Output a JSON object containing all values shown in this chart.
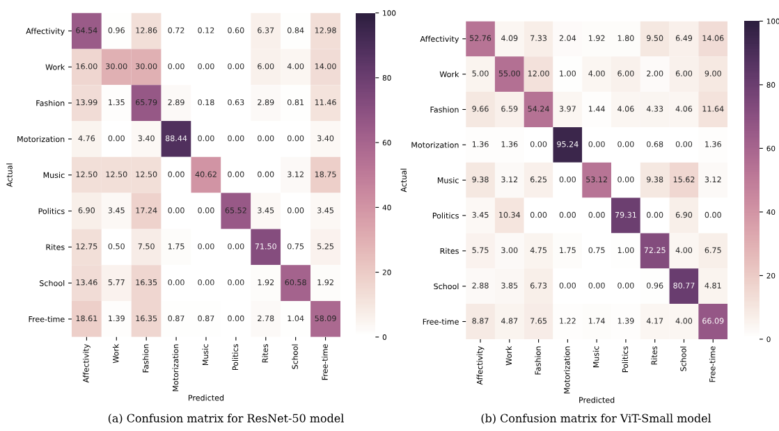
{
  "chart_data": [
    {
      "type": "heatmap",
      "xlabel": "Predicted",
      "ylabel": "Actual",
      "annotations": [
        "(a) Confusion matrix for ResNet-50 model"
      ],
      "categories": [
        "Affectivity",
        "Work",
        "Fashion",
        "Motorization",
        "Music",
        "Politics",
        "Rites",
        "School",
        "Free-time"
      ],
      "y_categories": [
        "Affectivity",
        "Work",
        "Fashion",
        "Motorization",
        "Music",
        "Politics",
        "Rites",
        "School",
        "Free-time"
      ],
      "cells": [
        [
          64.54,
          0.96,
          12.86,
          0.72,
          0.12,
          0.6,
          6.37,
          0.84,
          12.98
        ],
        [
          16.0,
          30.0,
          30.0,
          0.0,
          0.0,
          0.0,
          6.0,
          4.0,
          14.0
        ],
        [
          13.99,
          1.35,
          65.79,
          2.89,
          0.18,
          0.63,
          2.89,
          0.81,
          11.46
        ],
        [
          4.76,
          0.0,
          3.4,
          88.44,
          0.0,
          0.0,
          0.0,
          0.0,
          3.4
        ],
        [
          12.5,
          12.5,
          12.5,
          0.0,
          40.62,
          0.0,
          0.0,
          3.12,
          18.75
        ],
        [
          6.9,
          3.45,
          17.24,
          0.0,
          0.0,
          65.52,
          3.45,
          0.0,
          3.45
        ],
        [
          12.75,
          0.5,
          7.5,
          1.75,
          0.0,
          0.0,
          71.5,
          0.75,
          5.25
        ],
        [
          13.46,
          5.77,
          16.35,
          0.0,
          0.0,
          0.0,
          1.92,
          60.58,
          1.92
        ],
        [
          18.61,
          1.39,
          16.35,
          0.87,
          0.87,
          0.0,
          2.78,
          1.04,
          58.09
        ]
      ],
      "cell_labels": [
        [
          "64.54",
          "0.96",
          "12.86",
          "0.72",
          "0.12",
          "0.60",
          "6.37",
          "0.84",
          "12.98"
        ],
        [
          "16.00",
          "30.00",
          "30.00",
          "0.00",
          "0.00",
          "0.00",
          "6.00",
          "4.00",
          "14.00"
        ],
        [
          "13.99",
          "1.35",
          "65.79",
          "2.89",
          "0.18",
          "0.63",
          "2.89",
          "0.81",
          "11.46"
        ],
        [
          "4.76",
          "0.00",
          "3.40",
          "88.44",
          "0.00",
          "0.00",
          "0.00",
          "0.00",
          "3.40"
        ],
        [
          "12.50",
          "12.50",
          "12.50",
          "0.00",
          "40.62",
          "0.00",
          "0.00",
          "3.12",
          "18.75"
        ],
        [
          "6.90",
          "3.45",
          "17.24",
          "0.00",
          "0.00",
          "65.52",
          "3.45",
          "0.00",
          "3.45"
        ],
        [
          "12.75",
          "0.50",
          "7.50",
          "1.75",
          "0.00",
          "0.00",
          "71.50",
          "0.75",
          "5.25"
        ],
        [
          "13.46",
          "5.77",
          "16.35",
          "0.00",
          "0.00",
          "0.00",
          "1.92",
          "60.58",
          "1.92"
        ],
        [
          "18.61",
          "1.39",
          "16.35",
          "0.87",
          "0.87",
          "0.00",
          "2.78",
          "1.04",
          "58.09"
        ]
      ],
      "clim": [
        0,
        100
      ],
      "cticks": [
        0,
        20,
        40,
        60,
        80,
        100
      ]
    },
    {
      "type": "heatmap",
      "xlabel": "Predicted",
      "ylabel": "Actual",
      "annotations": [
        "(b) Confusion matrix for ViT-Small model"
      ],
      "categories": [
        "Affectivity",
        "Work",
        "Fashion",
        "Motorization",
        "Music",
        "Politics",
        "Rites",
        "School",
        "Free-time"
      ],
      "y_categories": [
        "Affectivity",
        "Work",
        "Fashion",
        "Motorization",
        "Music",
        "Politics",
        "Rites",
        "School",
        "Free-time"
      ],
      "cells": [
        [
          52.76,
          4.09,
          7.33,
          2.04,
          1.92,
          1.8,
          9.5,
          6.49,
          14.06
        ],
        [
          5.0,
          55.0,
          12.0,
          1.0,
          4.0,
          6.0,
          2.0,
          6.0,
          9.0
        ],
        [
          9.66,
          6.59,
          54.24,
          3.97,
          1.44,
          4.06,
          4.33,
          4.06,
          11.64
        ],
        [
          1.36,
          1.36,
          0.0,
          95.24,
          0.0,
          0.0,
          0.68,
          0.0,
          1.36
        ],
        [
          9.38,
          3.12,
          6.25,
          0.0,
          53.12,
          0.0,
          9.38,
          15.62,
          3.12
        ],
        [
          3.45,
          10.34,
          0.0,
          0.0,
          0.0,
          79.31,
          0.0,
          6.9,
          0.0
        ],
        [
          5.75,
          3.0,
          4.75,
          1.75,
          0.75,
          1.0,
          72.25,
          4.0,
          6.75
        ],
        [
          2.88,
          3.85,
          6.73,
          0.0,
          0.0,
          0.0,
          0.96,
          80.77,
          4.81
        ],
        [
          8.87,
          4.87,
          7.65,
          1.22,
          1.74,
          1.39,
          4.17,
          4.0,
          66.09
        ]
      ],
      "cell_labels": [
        [
          "52.76",
          "4.09",
          "7.33",
          "2.04",
          "1.92",
          "1.80",
          "9.50",
          "6.49",
          "14.06"
        ],
        [
          "5.00",
          "55.00",
          "12.00",
          "1.00",
          "4.00",
          "6.00",
          "2.00",
          "6.00",
          "9.00"
        ],
        [
          "9.66",
          "6.59",
          "54.24",
          "3.97",
          "1.44",
          "4.06",
          "4.33",
          "4.06",
          "11.64"
        ],
        [
          "1.36",
          "1.36",
          "0.00",
          "95.24",
          "0.00",
          "0.00",
          "0.68",
          "0.00",
          "1.36"
        ],
        [
          "9.38",
          "3.12",
          "6.25",
          "0.00",
          "53.12",
          "0.00",
          "9.38",
          "15.62",
          "3.12"
        ],
        [
          "3.45",
          "10.34",
          "0.00",
          "0.00",
          "0.00",
          "79.31",
          "0.00",
          "6.90",
          "0.00"
        ],
        [
          "5.75",
          "3.00",
          "4.75",
          "1.75",
          "0.75",
          "1.00",
          "72.25",
          "4.00",
          "6.75"
        ],
        [
          "2.88",
          "3.85",
          "6.73",
          "0.00",
          "0.00",
          "0.00",
          "0.96",
          "80.77",
          "4.81"
        ],
        [
          "8.87",
          "4.87",
          "7.65",
          "1.22",
          "1.74",
          "1.39",
          "4.17",
          "4.00",
          "66.09"
        ]
      ],
      "clim": [
        0,
        100
      ],
      "cticks": [
        0,
        20,
        40,
        60,
        80,
        100
      ]
    }
  ]
}
